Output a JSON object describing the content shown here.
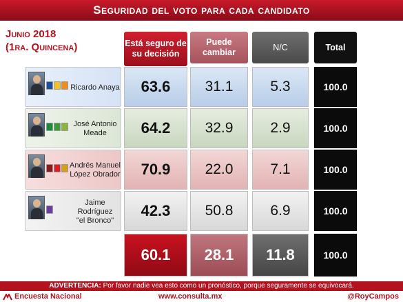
{
  "header": {
    "title": "Seguridad del voto para cada candidato",
    "date_line1": "Junio 2018",
    "date_line2": "(1ra. Quincena)"
  },
  "columns": {
    "seguro": "Está seguro de su decisión",
    "cambiar": "Puede cambiar",
    "nc": "N/C",
    "total": "Total"
  },
  "chart_data": {
    "type": "table",
    "title": "Seguridad del voto para cada candidato",
    "columns": [
      "Está seguro de su decisión",
      "Puede cambiar",
      "N/C",
      "Total"
    ],
    "rows": [
      {
        "name": "Ricardo Anaya",
        "seguro": "63.6",
        "cambiar": "31.1",
        "nc": "5.3",
        "total": "100.0"
      },
      {
        "name": "José Antonio Meade",
        "seguro": "64.2",
        "cambiar": "32.9",
        "nc": "2.9",
        "total": "100.0"
      },
      {
        "name": "Andrés Manuel López Obrador",
        "seguro": "70.9",
        "cambiar": "22.0",
        "nc": "7.1",
        "total": "100.0"
      },
      {
        "name": "Jaime Rodríguez \"el Bronco\"",
        "seguro": "42.3",
        "cambiar": "50.8",
        "nc": "6.9",
        "total": "100.0"
      }
    ],
    "totals": {
      "seguro": "60.1",
      "cambiar": "28.1",
      "nc": "11.8",
      "total": "100.0"
    }
  },
  "candidates": [
    {
      "line1": "Ricardo Anaya",
      "line2": "",
      "logos": [
        "#1f4e9c",
        "#f4c21a",
        "#f28c1a"
      ]
    },
    {
      "line1": "José Antonio",
      "line2": "Meade",
      "logos": [
        "#1a8a3c",
        "#3c9c3c",
        "#8ab43c"
      ]
    },
    {
      "line1": "Andrés Manuel",
      "line2": "López Obrador",
      "logos": [
        "#8b1a1a",
        "#e01b24",
        "#d4a017"
      ]
    },
    {
      "line1": "Jaime Rodríguez",
      "line2": "\"el Bronco\"",
      "logos": [
        "#6b3fa0"
      ]
    }
  ],
  "footer": {
    "warning_label": "ADVERTENCIA:",
    "warning_text": " Por favor nadie vea esto como un pronóstico, porque seguramente se equivocará.",
    "brand": "Encuesta Nacional",
    "url": "www.consulta.mx",
    "handle": "@RoyCampos"
  },
  "colors": {
    "accent": "#b3121f",
    "brand_icon": "consulta-logo-icon"
  }
}
